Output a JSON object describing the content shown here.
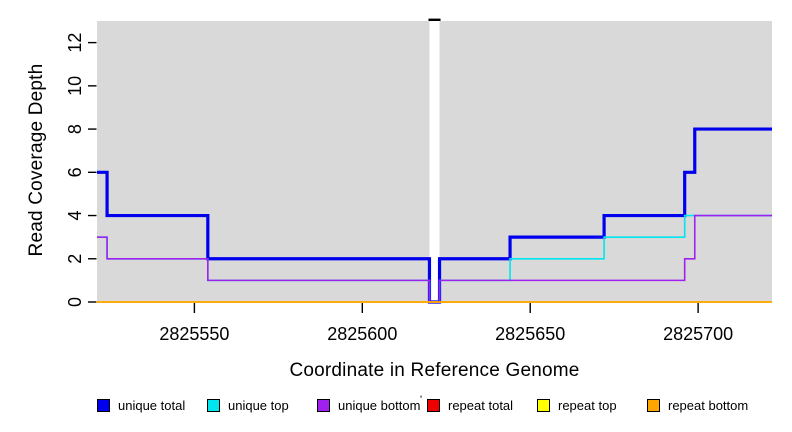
{
  "chart_data": {
    "type": "line",
    "style": "step",
    "title": "",
    "xlabel": "Coordinate in Reference Genome",
    "ylabel": "Read Coverage Depth",
    "xlim": [
      2825521,
      2825722
    ],
    "ylim": [
      0,
      13
    ],
    "x_ticks": [
      2825550,
      2825600,
      2825650,
      2825700
    ],
    "y_ticks": [
      0,
      2,
      4,
      6,
      8,
      10,
      12
    ],
    "grid": false,
    "plot_background": "#d9d9d9",
    "gap_band": {
      "x_start": 2825620,
      "x_end": 2825623,
      "color": "#ffffff",
      "top_marker_color": "#000000",
      "note": "white band where coverage drops to 0"
    },
    "series": [
      {
        "name": "unique total",
        "color": "#0000EE",
        "width": 3.2,
        "points": [
          [
            2825521,
            6
          ],
          [
            2825524,
            4
          ],
          [
            2825554,
            2
          ],
          [
            2825620,
            0
          ],
          [
            2825623,
            2
          ],
          [
            2825644,
            3
          ],
          [
            2825672,
            4
          ],
          [
            2825696,
            6
          ],
          [
            2825699,
            8
          ],
          [
            2825722,
            8
          ]
        ]
      },
      {
        "name": "unique top",
        "color": "#00E5EE",
        "width": 1.6,
        "points": [
          [
            2825521,
            3
          ],
          [
            2825524,
            2
          ],
          [
            2825554,
            1
          ],
          [
            2825620,
            0
          ],
          [
            2825623,
            1
          ],
          [
            2825644,
            2
          ],
          [
            2825672,
            3
          ],
          [
            2825696,
            4
          ],
          [
            2825722,
            4
          ]
        ]
      },
      {
        "name": "unique bottom",
        "color": "#A020F0",
        "width": 1.6,
        "points": [
          [
            2825521,
            3
          ],
          [
            2825524,
            2
          ],
          [
            2825554,
            1
          ],
          [
            2825620,
            0
          ],
          [
            2825623,
            1
          ],
          [
            2825696,
            2
          ],
          [
            2825699,
            4
          ],
          [
            2825722,
            4
          ]
        ]
      },
      {
        "name": "repeat total",
        "color": "#EE0000",
        "width": 1.6,
        "points": [
          [
            2825521,
            0
          ],
          [
            2825722,
            0
          ]
        ]
      },
      {
        "name": "repeat top",
        "color": "#FFFF00",
        "width": 1.6,
        "points": [
          [
            2825521,
            0
          ],
          [
            2825722,
            0
          ]
        ]
      },
      {
        "name": "repeat bottom",
        "color": "#FFA500",
        "width": 1.6,
        "points": [
          [
            2825521,
            0
          ],
          [
            2825722,
            0
          ]
        ]
      }
    ],
    "legend": {
      "position": "bottom-horizontal",
      "items": [
        {
          "label": "unique total",
          "color": "#0000EE"
        },
        {
          "label": "unique top",
          "color": "#00E5EE"
        },
        {
          "label": "unique bottom",
          "color": "#A020F0"
        },
        {
          "label": "repeat total",
          "color": "#EE0000"
        },
        {
          "label": "repeat top",
          "color": "#FFFF00"
        },
        {
          "label": "repeat bottom",
          "color": "#FFA500"
        }
      ]
    }
  },
  "stray_mark": "'"
}
